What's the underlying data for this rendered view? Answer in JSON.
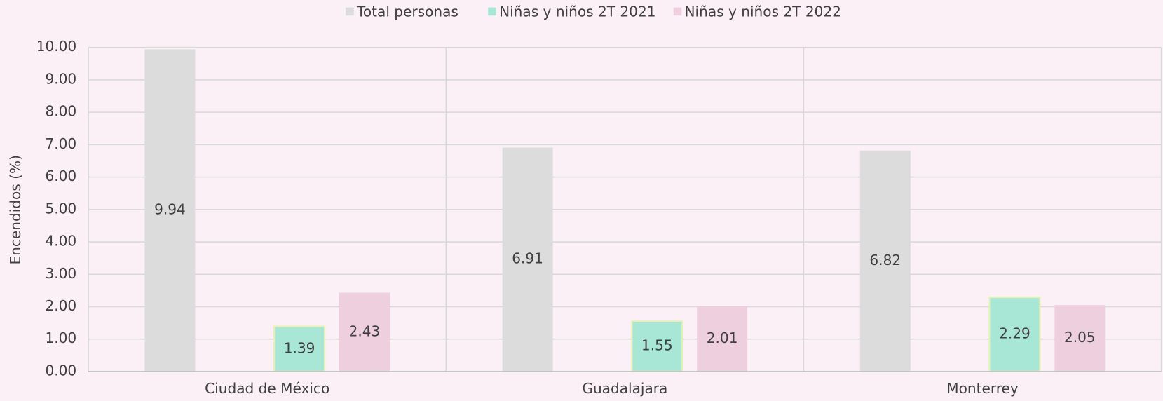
{
  "chart_data": {
    "type": "bar",
    "categories": [
      "Ciudad de México",
      "Guadalajara",
      "Monterrey"
    ],
    "series": [
      {
        "name": "Total personas",
        "color": "#dcdcdc",
        "values": [
          9.94,
          6.91,
          6.82
        ]
      },
      {
        "name": "Niñas y niños 2T 2021",
        "color": "#a8e6d6",
        "values": [
          1.39,
          1.55,
          2.29
        ]
      },
      {
        "name": "Niñas y niños 2T 2022",
        "color": "#edcfdd",
        "values": [
          2.43,
          2.01,
          2.05
        ]
      }
    ],
    "y_label": "Encendidos (%)",
    "ylim": [
      0,
      10
    ],
    "yticks": [
      {
        "value": 0,
        "label": "0.00"
      },
      {
        "value": 1,
        "label": "1.00"
      },
      {
        "value": 2,
        "label": "2.00"
      },
      {
        "value": 3,
        "label": "3.00"
      },
      {
        "value": 4,
        "label": "4.00"
      },
      {
        "value": 5,
        "label": "5.00"
      },
      {
        "value": 6,
        "label": "6.00"
      },
      {
        "value": 7,
        "label": "7.00"
      },
      {
        "value": 8,
        "label": "8.00"
      },
      {
        "value": 9,
        "label": "9.00"
      },
      {
        "value": 10,
        "label": "10.00"
      }
    ],
    "grid": true,
    "legend": "top"
  }
}
